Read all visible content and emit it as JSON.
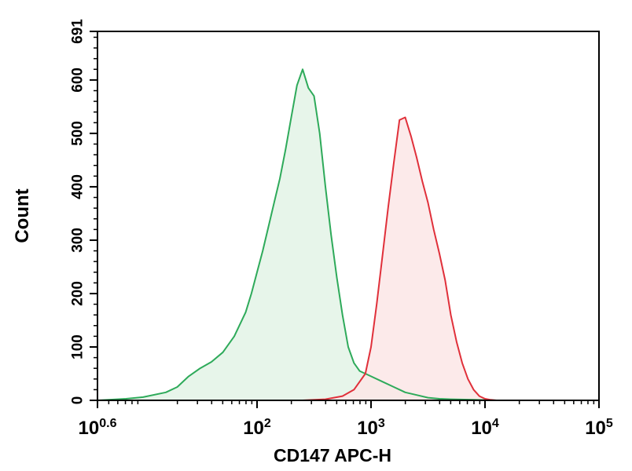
{
  "chart_data": {
    "type": "area",
    "title": "",
    "xlabel": "CD147 APC-H",
    "ylabel": "Count",
    "x_scale": "log",
    "xlim": [
      0.6,
      5
    ],
    "ylim": [
      0,
      691
    ],
    "y_ticks": [
      0,
      100,
      200,
      300,
      400,
      500,
      600,
      691
    ],
    "x_ticks": [
      {
        "value": 0.6,
        "base": "10",
        "exp": "0.6"
      },
      {
        "value": 2,
        "base": "10",
        "exp": "2"
      },
      {
        "value": 3,
        "base": "10",
        "exp": "3"
      },
      {
        "value": 4,
        "base": "10",
        "exp": "4"
      },
      {
        "value": 5,
        "base": "10",
        "exp": "5"
      }
    ],
    "grid": false,
    "legend": "none",
    "series": [
      {
        "color": "#2eaa5a",
        "fill": "#e3f3e6",
        "x": [
          0.6,
          0.85,
          1.0,
          1.2,
          1.3,
          1.4,
          1.5,
          1.6,
          1.7,
          1.8,
          1.9,
          1.95,
          2.0,
          2.05,
          2.1,
          2.15,
          2.2,
          2.25,
          2.3,
          2.35,
          2.4,
          2.45,
          2.5,
          2.55,
          2.6,
          2.65,
          2.7,
          2.75,
          2.8,
          2.85,
          2.9,
          2.95,
          3.0,
          3.1,
          3.2,
          3.3,
          3.4,
          3.5,
          3.6,
          3.7,
          3.9,
          4.1
        ],
        "values": [
          0,
          3,
          6,
          15,
          25,
          45,
          60,
          72,
          90,
          120,
          165,
          200,
          240,
          280,
          325,
          370,
          415,
          470,
          530,
          590,
          620,
          585,
          570,
          500,
          400,
          310,
          230,
          160,
          100,
          70,
          55,
          50,
          45,
          35,
          25,
          15,
          10,
          5,
          3,
          2,
          1,
          0
        ]
      },
      {
        "color": "#e0303a",
        "fill": "#fbe6e6",
        "x": [
          2.4,
          2.6,
          2.75,
          2.85,
          2.95,
          3.0,
          3.05,
          3.1,
          3.15,
          3.2,
          3.25,
          3.3,
          3.35,
          3.4,
          3.45,
          3.5,
          3.55,
          3.6,
          3.65,
          3.7,
          3.75,
          3.8,
          3.85,
          3.9,
          3.95,
          4.0,
          4.05,
          4.1
        ],
        "values": [
          0,
          2,
          8,
          20,
          50,
          100,
          180,
          270,
          360,
          445,
          525,
          530,
          495,
          455,
          410,
          370,
          320,
          275,
          225,
          160,
          110,
          70,
          40,
          20,
          8,
          3,
          1,
          0
        ]
      }
    ]
  }
}
